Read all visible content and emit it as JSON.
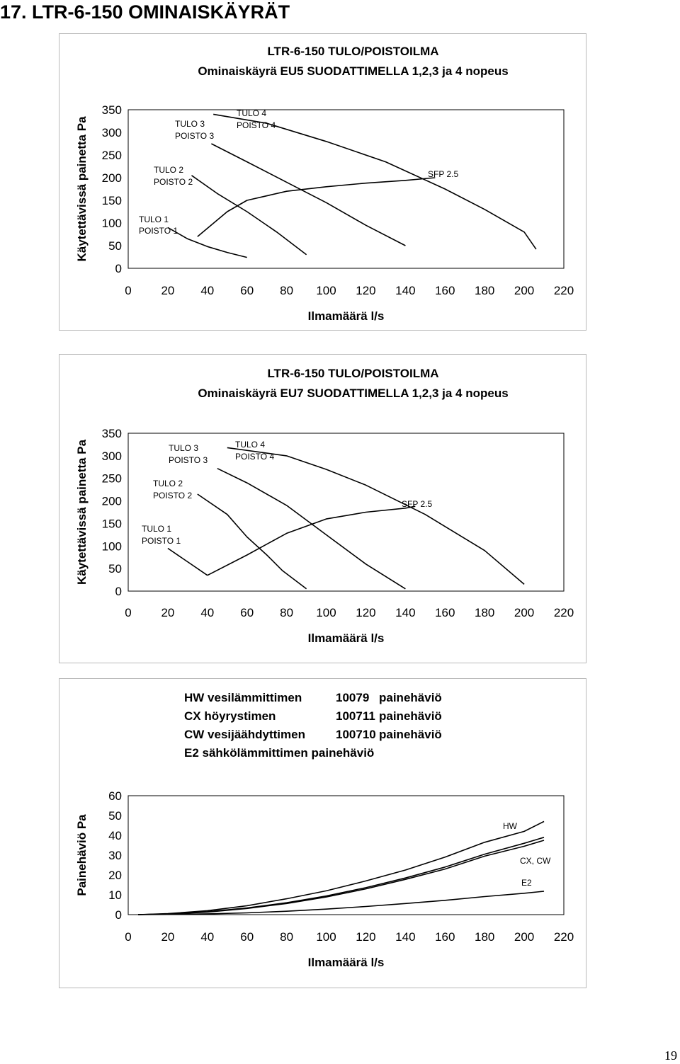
{
  "page": {
    "heading": "17. LTR-6-150 OMINAISKÄYRÄT",
    "page_number": "19"
  },
  "chart_data": [
    {
      "type": "line",
      "title": "LTR-6-150 TULO/POISTOILMA",
      "subtitle": "Ominaiskäyrä EU5 SUODATTIMELLA 1,2,3 ja 4 nopeus",
      "xlabel": "Ilmamäärä l/s",
      "ylabel": "Käytettävissä painetta Pa",
      "xlim": [
        0,
        220
      ],
      "ylim": [
        0,
        350
      ],
      "xticks": [
        "0",
        "20",
        "40",
        "60",
        "80",
        "100",
        "120",
        "140",
        "160",
        "180",
        "200",
        "220"
      ],
      "yticks": [
        "0",
        "50",
        "100",
        "150",
        "200",
        "250",
        "300",
        "350"
      ],
      "grid": false,
      "series": [
        {
          "name": "TULO 1 POISTO 1",
          "label_lines": [
            "TULO 1",
            "POISTO 1"
          ],
          "x": [
            20,
            30,
            40,
            50,
            60
          ],
          "y": [
            90,
            65,
            48,
            35,
            24
          ]
        },
        {
          "name": "TULO 2 POISTO 2",
          "label_lines": [
            "TULO 2",
            "POISTO 2"
          ],
          "x": [
            32,
            45,
            60,
            75,
            90
          ],
          "y": [
            205,
            165,
            125,
            80,
            30
          ]
        },
        {
          "name": "TULO 3 POISTO 3",
          "label_lines": [
            "TULO 3",
            "POISTO 3"
          ],
          "x": [
            42,
            60,
            80,
            100,
            120,
            140
          ],
          "y": [
            275,
            235,
            190,
            145,
            95,
            50
          ]
        },
        {
          "name": "TULO 4 POISTO 4",
          "label_lines": [
            "TULO 4",
            "POISTO 4"
          ],
          "x": [
            43,
            70,
            100,
            130,
            160,
            180,
            200,
            206
          ],
          "y": [
            340,
            320,
            280,
            235,
            175,
            130,
            80,
            42
          ]
        },
        {
          "name": "SFP 2.5",
          "label_lines": [
            "SFP 2.5"
          ],
          "x": [
            35,
            50,
            60,
            80,
            100,
            120,
            140,
            155
          ],
          "y": [
            70,
            125,
            150,
            170,
            180,
            188,
            194,
            200
          ]
        }
      ]
    },
    {
      "type": "line",
      "title": "LTR-6-150 TULO/POISTOILMA",
      "subtitle": "Ominaiskäyrä EU7 SUODATTIMELLA 1,2,3 ja 4 nopeus",
      "xlabel": "Ilmamäärä l/s",
      "ylabel": "Käytettävissä painetta Pa",
      "xlim": [
        0,
        220
      ],
      "ylim": [
        0,
        350
      ],
      "xticks": [
        "0",
        "20",
        "40",
        "60",
        "80",
        "100",
        "120",
        "140",
        "160",
        "180",
        "200",
        "220"
      ],
      "yticks": [
        "0",
        "50",
        "100",
        "150",
        "200",
        "250",
        "300",
        "350"
      ],
      "grid": false,
      "series": [
        {
          "name": "TULO 1 POISTO 1",
          "label_lines": [
            "TULO 1",
            "POISTO 1"
          ],
          "x": [
            20,
            30,
            40
          ],
          "y": [
            95,
            65,
            35
          ]
        },
        {
          "name": "TULO 2 POISTO 2",
          "label_lines": [
            "TULO 2",
            "POISTO 2"
          ],
          "x": [
            35,
            50,
            60,
            70,
            78,
            90
          ],
          "y": [
            215,
            170,
            120,
            80,
            45,
            5
          ]
        },
        {
          "name": "TULO 3 POISTO 3",
          "label_lines": [
            "TULO 3",
            "POISTO 3"
          ],
          "x": [
            45,
            60,
            80,
            100,
            120,
            140
          ],
          "y": [
            272,
            240,
            190,
            125,
            60,
            5
          ]
        },
        {
          "name": "TULO 4 POISTO 4",
          "label_lines": [
            "TULO 4",
            "POISTO 4"
          ],
          "x": [
            50,
            80,
            100,
            120,
            150,
            180,
            200
          ],
          "y": [
            318,
            300,
            270,
            235,
            170,
            90,
            15
          ]
        },
        {
          "name": "SFP 2.5",
          "label_lines": [
            "SFP 2.5"
          ],
          "x": [
            40,
            60,
            80,
            100,
            120,
            140,
            145
          ],
          "y": [
            35,
            80,
            128,
            160,
            175,
            184,
            188
          ]
        }
      ]
    },
    {
      "type": "line",
      "title_lines": [
        {
          "name": "HW vesilämmittimen",
          "code": "10079",
          "suffix": "painehäviö"
        },
        {
          "name": "CX höyrystimen",
          "code": "100711",
          "suffix": "painehäviö"
        },
        {
          "name": "CW vesijäähdyttimen",
          "code": "100710",
          "suffix": "painehäviö"
        },
        {
          "name": "E2 sähkölämmittimen painehäviö",
          "code": "",
          "suffix": ""
        }
      ],
      "xlabel": "Ilmamäärä l/s",
      "ylabel": "Painehäviö Pa",
      "xlim": [
        0,
        220
      ],
      "ylim": [
        0,
        60
      ],
      "xticks": [
        "0",
        "20",
        "40",
        "60",
        "80",
        "100",
        "120",
        "140",
        "160",
        "180",
        "200",
        "220"
      ],
      "yticks": [
        "0",
        "10",
        "20",
        "30",
        "40",
        "50",
        "60"
      ],
      "grid": false,
      "annotations": [
        "HW",
        "CX, CW",
        "E2"
      ],
      "series": [
        {
          "name": "HW",
          "x": [
            5,
            20,
            40,
            60,
            80,
            100,
            120,
            140,
            160,
            180,
            200,
            210
          ],
          "y": [
            0,
            0.5,
            2,
            4.5,
            8,
            12,
            17,
            22.5,
            29,
            36.5,
            42,
            47
          ]
        },
        {
          "name": "CX",
          "x": [
            5,
            20,
            40,
            60,
            80,
            100,
            120,
            140,
            160,
            180,
            200,
            210
          ],
          "y": [
            0,
            0.4,
            1.5,
            3.4,
            6,
            9.4,
            13.6,
            18.5,
            24,
            30.5,
            36,
            39
          ]
        },
        {
          "name": "CW",
          "x": [
            5,
            20,
            40,
            60,
            80,
            100,
            120,
            140,
            160,
            180,
            200,
            210
          ],
          "y": [
            0,
            0.3,
            1.3,
            3.1,
            5.6,
            8.9,
            13,
            17.8,
            23,
            29.5,
            34.5,
            37.5
          ]
        },
        {
          "name": "E2",
          "x": [
            5,
            20,
            40,
            60,
            80,
            100,
            120,
            140,
            160,
            180,
            200,
            210
          ],
          "y": [
            0,
            0.1,
            0.4,
            0.9,
            1.7,
            2.8,
            4.1,
            5.6,
            7.2,
            9.1,
            10.8,
            11.8
          ]
        }
      ]
    }
  ]
}
